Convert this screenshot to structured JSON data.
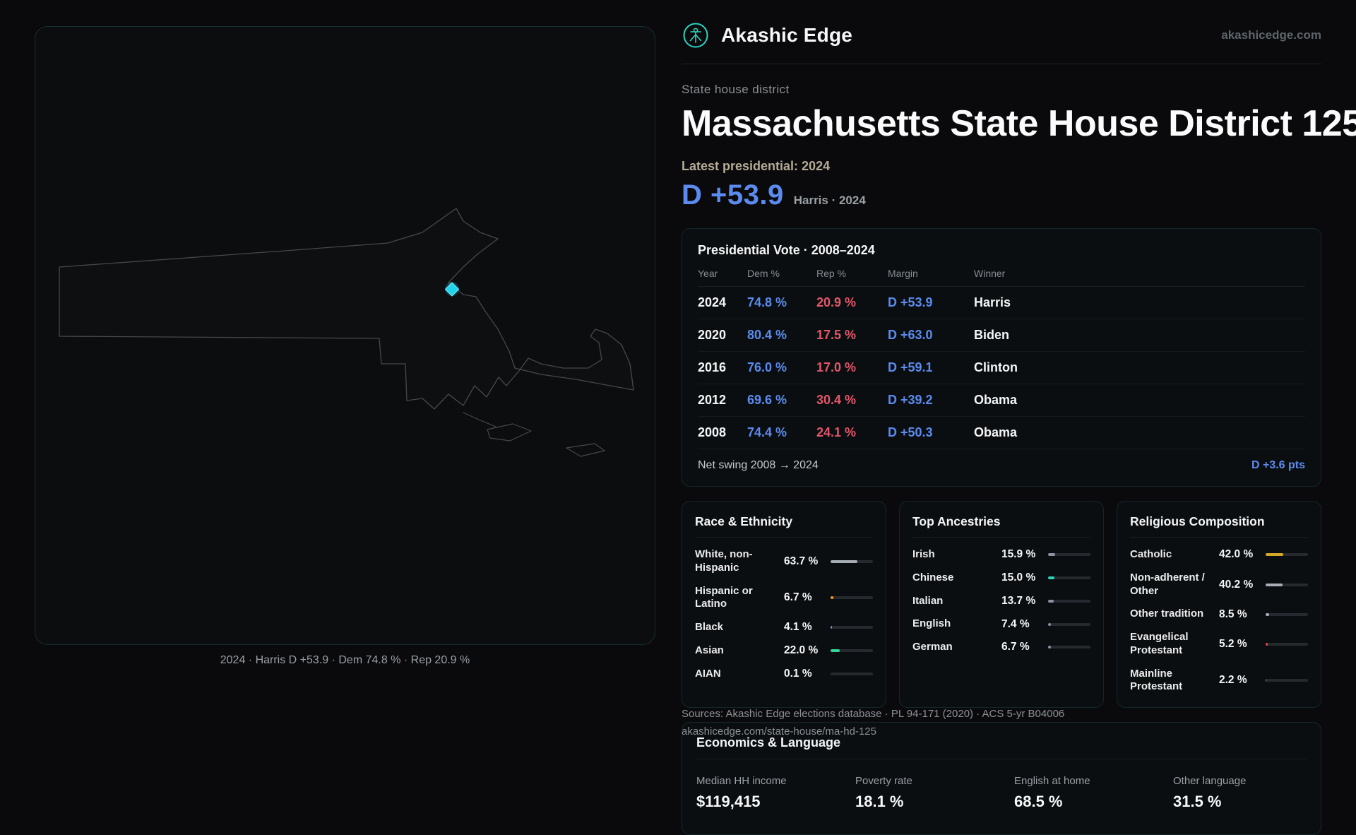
{
  "brand": {
    "name": "Akashic Edge",
    "domain": "akashicedge.com"
  },
  "hero": {
    "eyebrow": "State house district",
    "title": "Massachusetts State House District 125",
    "latest_label": "Latest presidential: 2024",
    "margin_value": "D +53.9",
    "margin_context": "Harris · 2024"
  },
  "map": {
    "caption": "2024 · Harris D +53.9 · Dem 74.8 % · Rep 20.9 %",
    "district_marker_color": "#22d3ee"
  },
  "presidential_table": {
    "title": "Presidential Vote · 2008–2024",
    "columns": [
      "Year",
      "Dem %",
      "Rep %",
      "Margin",
      "Winner"
    ],
    "rows": [
      {
        "year": "2024",
        "dem": "74.8 %",
        "rep": "20.9 %",
        "margin": "D +53.9",
        "winner": "Harris"
      },
      {
        "year": "2020",
        "dem": "80.4 %",
        "rep": "17.5 %",
        "margin": "D +63.0",
        "winner": "Biden"
      },
      {
        "year": "2016",
        "dem": "76.0 %",
        "rep": "17.0 %",
        "margin": "D +59.1",
        "winner": "Clinton"
      },
      {
        "year": "2012",
        "dem": "69.6 %",
        "rep": "30.4 %",
        "margin": "D +39.2",
        "winner": "Obama"
      },
      {
        "year": "2008",
        "dem": "74.4 %",
        "rep": "24.1 %",
        "margin": "D +50.3",
        "winner": "Obama"
      }
    ],
    "net_swing_label": "Net swing 2008 → 2024",
    "net_swing_value": "D +3.6 pts"
  },
  "race_card": {
    "title": "Race & Ethnicity",
    "rows": [
      {
        "label": "White, non-Hispanic",
        "value": "63.7 %",
        "pct": 63.7,
        "color": "#a8adb5"
      },
      {
        "label": "Hispanic or Latino",
        "value": "6.7 %",
        "pct": 6.7,
        "color": "#f59e0b"
      },
      {
        "label": "Black",
        "value": "4.1 %",
        "pct": 4.1,
        "color": "#818cf8"
      },
      {
        "label": "Asian",
        "value": "22.0 %",
        "pct": 22.0,
        "color": "#34d399"
      },
      {
        "label": "AIAN",
        "value": "0.1 %",
        "pct": 0.1,
        "color": "#a8adb5"
      }
    ]
  },
  "ancestry_card": {
    "title": "Top Ancestries",
    "rows": [
      {
        "label": "Irish",
        "value": "15.9 %",
        "pct": 15.9,
        "color": "#8b93a3"
      },
      {
        "label": "Chinese",
        "value": "15.0 %",
        "pct": 15.0,
        "color": "#2dd4bf"
      },
      {
        "label": "Italian",
        "value": "13.7 %",
        "pct": 13.7,
        "color": "#8b93a3"
      },
      {
        "label": "English",
        "value": "7.4 %",
        "pct": 7.4,
        "color": "#8b93a3"
      },
      {
        "label": "German",
        "value": "6.7 %",
        "pct": 6.7,
        "color": "#8b93a3"
      }
    ]
  },
  "religion_card": {
    "title": "Religious Composition",
    "rows": [
      {
        "label": "Catholic",
        "value": "42.0 %",
        "pct": 42.0,
        "color": "#d4a72c"
      },
      {
        "label": "Non-adherent / Other",
        "value": "40.2 %",
        "pct": 40.2,
        "color": "#a8adb5"
      },
      {
        "label": "Other tradition",
        "value": "8.5 %",
        "pct": 8.5,
        "color": "#a8adb5"
      },
      {
        "label": "Evangelical Protestant",
        "value": "5.2 %",
        "pct": 5.2,
        "color": "#ef4444"
      },
      {
        "label": "Mainline Protestant",
        "value": "2.2 %",
        "pct": 2.2,
        "color": "#60a5fa"
      }
    ]
  },
  "economics_card": {
    "title": "Economics & Language",
    "stats": [
      {
        "label": "Median HH income",
        "value": "$119,415"
      },
      {
        "label": "Poverty rate",
        "value": "18.1 %"
      },
      {
        "label": "English at home",
        "value": "68.5 %"
      },
      {
        "label": "Other language",
        "value": "31.5 %"
      }
    ]
  },
  "source_footer": {
    "line1": "Sources: Akashic Edge elections database · PL 94-171 (2020) · ACS 5-yr B04006",
    "line2": "akashicedge.com/state-house/ma-hd-125"
  },
  "colors": {
    "accent_blue": "#5b8bef",
    "accent_red": "#e2566b",
    "brand_teal": "#2dd4bf",
    "district_cyan": "#22d3ee"
  }
}
